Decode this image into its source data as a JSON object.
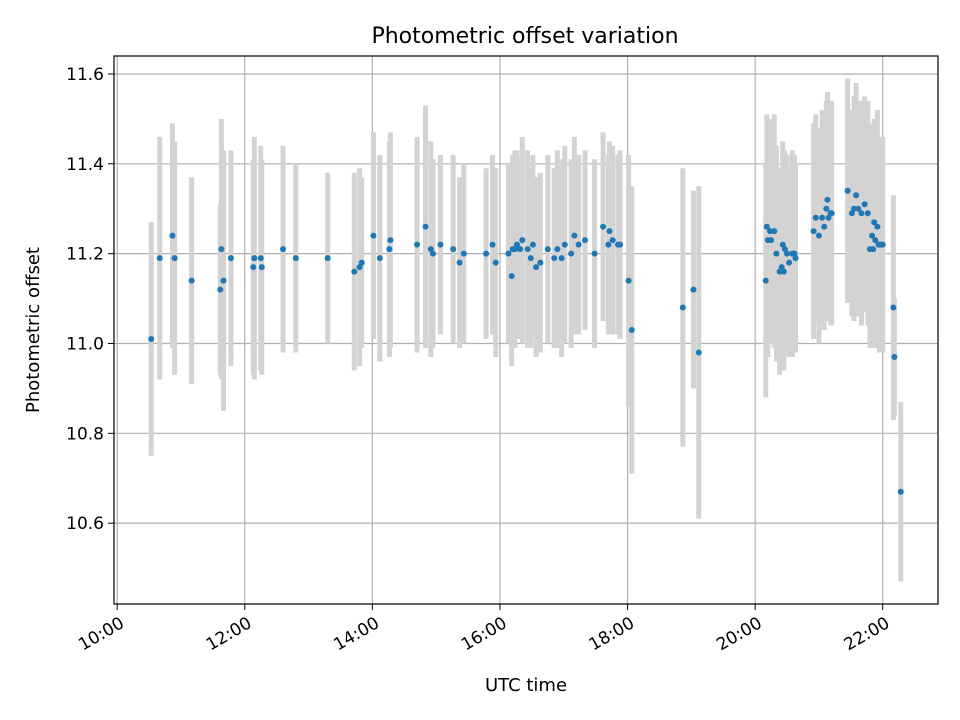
{
  "chart_data": {
    "type": "scatter",
    "title": "Photometric offset variation",
    "xlabel": "UTC time",
    "ylabel": "Photometric offset",
    "x_ticks": [
      "10:00",
      "12:00",
      "14:00",
      "16:00",
      "18:00",
      "20:00",
      "22:00"
    ],
    "y_ticks": [
      "10.6",
      "10.8",
      "11.0",
      "11.2",
      "11.4",
      "11.6"
    ],
    "xlim": [
      "09:57",
      "22:52"
    ],
    "ylim": [
      10.42,
      11.64
    ],
    "grid": true,
    "colors": {
      "point": "#1f77b4",
      "errorbar": "#d3d3d3",
      "grid": "#b0b0b0"
    },
    "series": [
      {
        "x": [
          "10:32",
          "10:40",
          "10:52",
          "10:54",
          "11:10",
          "11:37",
          "11:38",
          "11:40",
          "11:47",
          "12:08",
          "12:09",
          "12:15",
          "12:16",
          "12:36",
          "12:48",
          "13:18",
          "13:43",
          "13:48",
          "13:50",
          "14:01",
          "14:07",
          "14:16",
          "14:17",
          "14:42",
          "14:50",
          "14:55",
          "14:57",
          "15:04",
          "15:16",
          "15:22",
          "15:26",
          "15:47",
          "15:53",
          "15:56",
          "16:08",
          "16:11",
          "16:12",
          "16:14",
          "16:16",
          "16:19",
          "16:21",
          "16:26",
          "16:29",
          "16:31",
          "16:34",
          "16:38",
          "16:45",
          "16:51",
          "16:54",
          "16:58",
          "17:01",
          "17:07",
          "17:10",
          "17:14",
          "17:20",
          "17:29",
          "17:37",
          "17:42",
          "17:43",
          "17:46",
          "17:51",
          "17:53",
          "18:01",
          "18:04",
          "18:52",
          "19:02",
          "19:07",
          "20:10",
          "20:11",
          "20:12",
          "20:14",
          "20:15",
          "20:18",
          "20:20",
          "20:23",
          "20:25",
          "20:26",
          "20:27",
          "20:28",
          "20:30",
          "20:32",
          "20:35",
          "20:36",
          "20:37",
          "20:38",
          "20:55",
          "20:57",
          "21:00",
          "21:03",
          "21:05",
          "21:07",
          "21:08",
          "21:09",
          "21:11",
          "21:12",
          "21:27",
          "21:31",
          "21:33",
          "21:35",
          "21:37",
          "21:40",
          "21:43",
          "21:46",
          "21:48",
          "21:50",
          "21:51",
          "21:52",
          "21:53",
          "21:55",
          "21:56",
          "21:57",
          "21:58",
          "22:00",
          "22:10",
          "22:11",
          "22:17"
        ],
        "y": [
          11.01,
          11.19,
          11.24,
          11.19,
          11.14,
          11.12,
          11.21,
          11.14,
          11.19,
          11.17,
          11.19,
          11.19,
          11.17,
          11.21,
          11.19,
          11.19,
          11.16,
          11.17,
          11.18,
          11.24,
          11.19,
          11.21,
          11.23,
          11.22,
          11.26,
          11.21,
          11.2,
          11.22,
          11.21,
          11.18,
          11.2,
          11.2,
          11.22,
          11.18,
          11.2,
          11.15,
          11.21,
          11.21,
          11.22,
          11.21,
          11.23,
          11.21,
          11.19,
          11.22,
          11.17,
          11.18,
          11.21,
          11.19,
          11.21,
          11.19,
          11.22,
          11.2,
          11.24,
          11.22,
          11.23,
          11.2,
          11.26,
          11.22,
          11.25,
          11.23,
          11.22,
          11.22,
          11.14,
          11.03,
          11.08,
          11.12,
          10.98,
          11.14,
          11.26,
          11.23,
          11.25,
          11.23,
          11.25,
          11.2,
          11.16,
          11.17,
          11.22,
          11.16,
          11.21,
          11.2,
          11.18,
          11.2,
          11.2,
          11.2,
          11.19,
          11.25,
          11.28,
          11.24,
          11.28,
          11.26,
          11.3,
          11.32,
          11.28,
          11.29,
          11.29,
          11.34,
          11.29,
          11.3,
          11.33,
          11.3,
          11.29,
          11.31,
          11.29,
          11.21,
          11.24,
          11.21,
          11.27,
          11.23,
          11.26,
          11.22,
          11.22,
          11.22,
          11.22,
          11.08,
          10.97,
          10.67
        ],
        "err": [
          0.26,
          0.27,
          0.25,
          0.26,
          0.23,
          0.19,
          0.29,
          0.29,
          0.24,
          0.24,
          0.27,
          0.25,
          0.24,
          0.23,
          0.21,
          0.19,
          0.22,
          0.22,
          0.19,
          0.23,
          0.23,
          0.24,
          0.24,
          0.24,
          0.27,
          0.24,
          0.21,
          0.2,
          0.21,
          0.19,
          0.2,
          0.19,
          0.2,
          0.21,
          0.2,
          0.2,
          0.21,
          0.22,
          0.21,
          0.2,
          0.23,
          0.22,
          0.2,
          0.2,
          0.2,
          0.2,
          0.21,
          0.2,
          0.22,
          0.22,
          0.22,
          0.21,
          0.22,
          0.2,
          0.2,
          0.21,
          0.21,
          0.2,
          0.2,
          0.21,
          0.2,
          0.21,
          0.28,
          0.32,
          0.31,
          0.22,
          0.37,
          0.26,
          0.25,
          0.26,
          0.25,
          0.23,
          0.26,
          0.24,
          0.23,
          0.22,
          0.23,
          0.22,
          0.22,
          0.22,
          0.21,
          0.23,
          0.22,
          0.22,
          0.21,
          0.24,
          0.23,
          0.24,
          0.24,
          0.23,
          0.24,
          0.24,
          0.23,
          0.25,
          0.25,
          0.25,
          0.23,
          0.25,
          0.25,
          0.24,
          0.25,
          0.24,
          0.25,
          0.22,
          0.25,
          0.22,
          0.23,
          0.24,
          0.26,
          0.23,
          0.24,
          0.23,
          0.24,
          0.25,
          0.13,
          0.2
        ]
      }
    ]
  }
}
